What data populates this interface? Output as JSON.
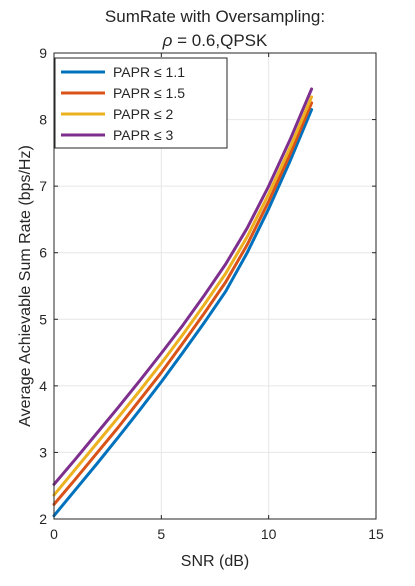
{
  "chart_data": {
    "type": "line",
    "title_line1": "SumRate with Oversampling:",
    "title_line2_rho": "ρ",
    "title_line2_rest": " = 0.6,QPSK",
    "xlabel": "SNR (dB)",
    "ylabel": "Average Achievable Sum Rate (bps/Hz)",
    "xlim": [
      0,
      15
    ],
    "ylim": [
      2,
      9
    ],
    "xticks": [
      0,
      5,
      10,
      15
    ],
    "yticks": [
      2,
      3,
      4,
      5,
      6,
      7,
      8,
      9
    ],
    "grid": true,
    "legend_position": "top-left",
    "x": [
      0,
      1,
      2,
      3,
      4,
      5,
      6,
      7,
      8,
      9,
      10,
      11,
      12
    ],
    "series": [
      {
        "name": "PAPR ≤ 1.1",
        "color": "#0072BD",
        "values": [
          2.05,
          2.44,
          2.83,
          3.23,
          3.64,
          4.06,
          4.5,
          4.95,
          5.42,
          6.0,
          6.66,
          7.38,
          8.15
        ]
      },
      {
        "name": "PAPR ≤ 1.5",
        "color": "#D95319",
        "values": [
          2.22,
          2.6,
          2.99,
          3.38,
          3.79,
          4.2,
          4.64,
          5.09,
          5.56,
          6.12,
          6.77,
          7.48,
          8.25
        ]
      },
      {
        "name": "PAPR ≤ 2",
        "color": "#EDB120",
        "values": [
          2.36,
          2.75,
          3.14,
          3.53,
          3.93,
          4.34,
          4.77,
          5.22,
          5.69,
          6.24,
          6.88,
          7.58,
          8.34
        ]
      },
      {
        "name": "PAPR ≤ 3",
        "color": "#7E2F8E",
        "values": [
          2.52,
          2.9,
          3.29,
          3.68,
          4.08,
          4.49,
          4.91,
          5.36,
          5.83,
          6.37,
          7.0,
          7.7,
          8.46
        ]
      }
    ]
  }
}
